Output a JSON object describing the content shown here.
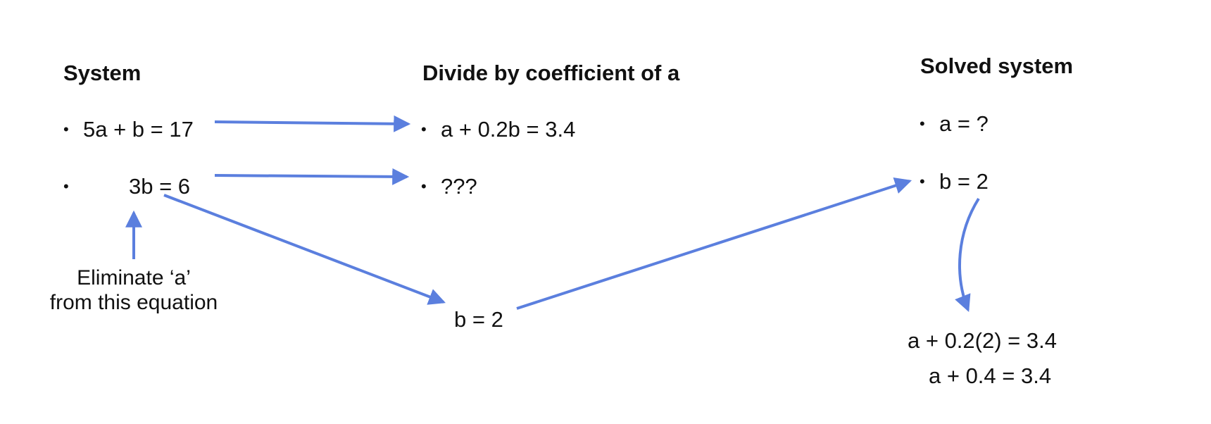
{
  "columns": {
    "system": {
      "heading": "System",
      "eq1": "5a + b = 17",
      "eq2": "3b = 6"
    },
    "divide": {
      "heading": "Divide by coefficient of a",
      "eq1": "a + 0.2b = 3.4",
      "eq2": "???"
    },
    "solved": {
      "heading": "Solved system",
      "eq1": "a = ?",
      "eq2": "b = 2"
    }
  },
  "notes": {
    "eliminate_line1": "Eliminate ‘a’",
    "eliminate_line2": "from this equation",
    "middle_result": "b = 2",
    "substitute_line1": "a + 0.2(2) = 3.4",
    "substitute_line2": "a + 0.4 = 3.4"
  },
  "bullet_glyph": "•",
  "colors": {
    "arrow": "#5b7fde",
    "text": "#111111"
  }
}
